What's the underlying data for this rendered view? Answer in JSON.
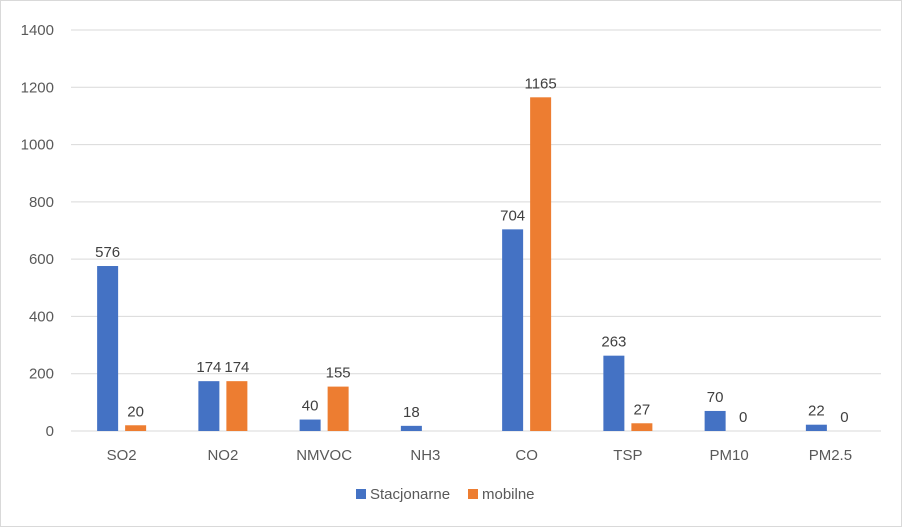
{
  "chart_data": {
    "type": "bar",
    "title": "",
    "xlabel": "",
    "ylabel": "",
    "ylim": [
      0,
      1400
    ],
    "yticks": [
      0,
      200,
      400,
      600,
      800,
      1000,
      1200,
      1400
    ],
    "grid": true,
    "legend_position": "bottom",
    "categories": [
      "SO2",
      "NO2",
      "NMVOC",
      "NH3",
      "CO",
      "TSP",
      "PM10",
      "PM2.5"
    ],
    "series": [
      {
        "name": "Stacjonarne",
        "color": "#4472c4",
        "values": [
          576,
          174,
          40,
          18,
          704,
          263,
          70,
          22
        ],
        "labels": [
          "576",
          "174",
          "40",
          "18",
          "704",
          "263",
          "70",
          "22"
        ]
      },
      {
        "name": "mobilne",
        "color": "#ed7d31",
        "values": [
          20,
          174,
          155,
          0,
          1165,
          27,
          0,
          0
        ],
        "labels": [
          "20",
          "174",
          "155",
          "",
          "1165",
          "27",
          "0",
          "0"
        ]
      }
    ]
  }
}
